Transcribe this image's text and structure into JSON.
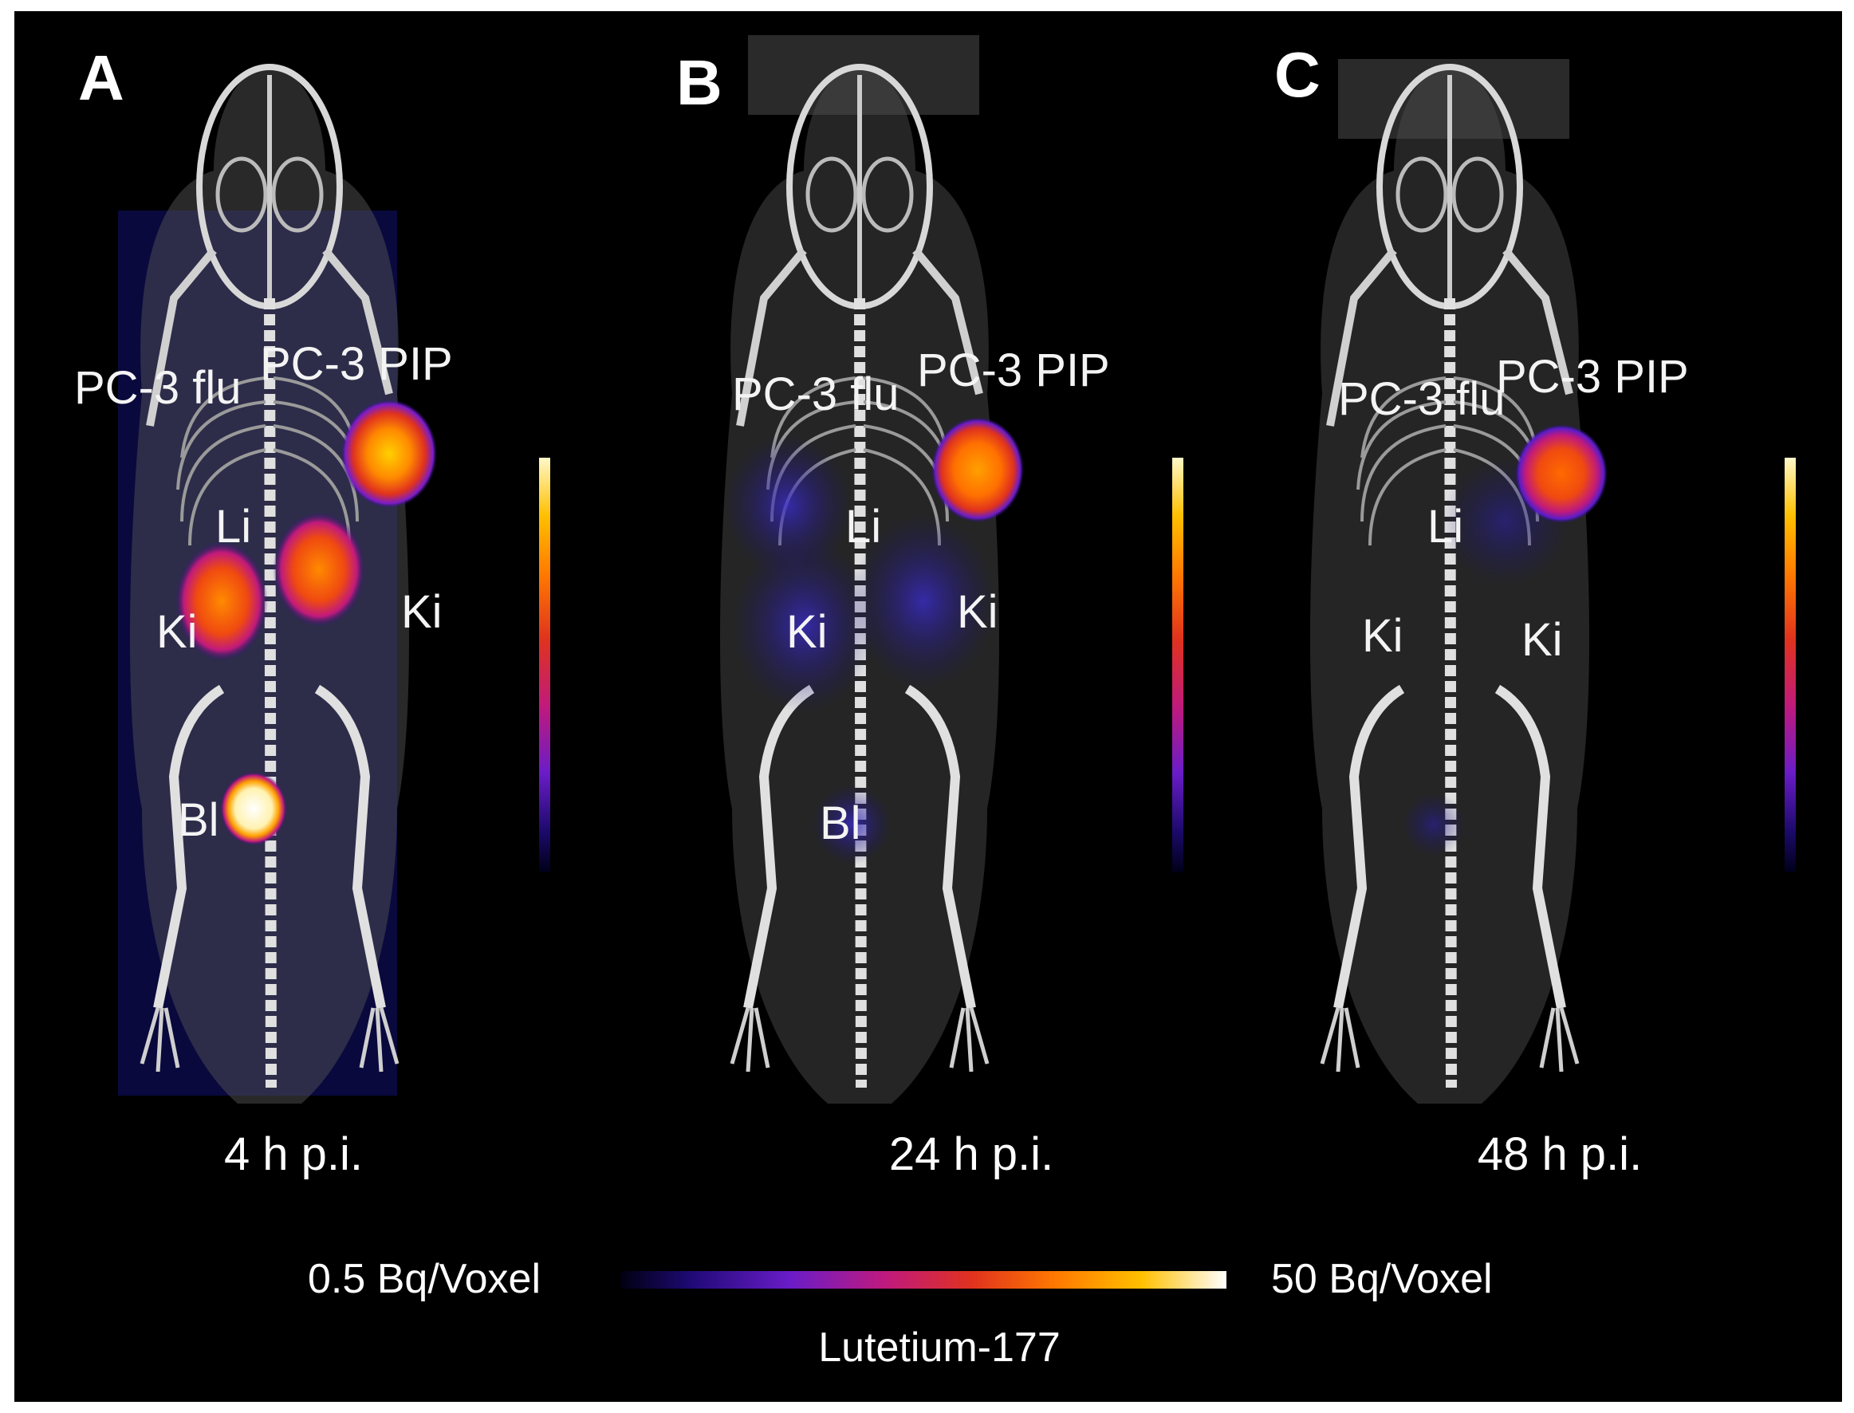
{
  "panels": [
    {
      "letter": "A",
      "time": "4 h p.i.",
      "labels": {
        "flu": "PC-3 flu",
        "pip": "PC-3 PIP",
        "li": "Li",
        "ki_left": "Ki",
        "ki_right": "Ki",
        "bl": "Bl"
      }
    },
    {
      "letter": "B",
      "time": "24 h p.i.",
      "labels": {
        "flu": "PC-3 flu",
        "pip": "PC-3 PIP",
        "li": "Li",
        "ki_left": "Ki",
        "ki_right": "Ki",
        "bl": "Bl"
      }
    },
    {
      "letter": "C",
      "time": "48 h p.i.",
      "labels": {
        "flu": "PC-3 flu",
        "pip": "PC-3 PIP",
        "li": "Li",
        "ki_left": "Ki",
        "ki_right": "Ki"
      }
    }
  ],
  "colorbar": {
    "min_label": "0.5 Bq/Voxel",
    "max_label": "50 Bq/Voxel",
    "isotope": "Lutetium-177"
  },
  "colors": {
    "background": "#000000",
    "bone": "#d8d8d8",
    "low_uptake": "#3a2cc8",
    "mid_uptake": "#ff5a10",
    "high_uptake": "#ffffff"
  }
}
